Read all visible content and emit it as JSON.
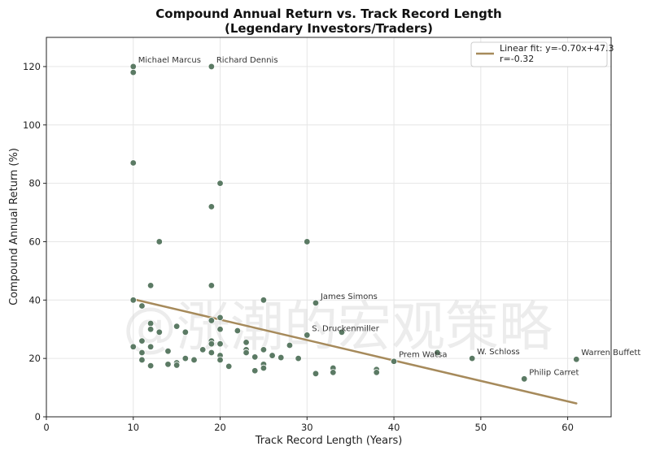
{
  "chart_data": {
    "type": "scatter",
    "title": "Compound Annual Return vs. Track Record Length",
    "subtitle": "(Legendary Investors/Traders)",
    "xlabel": "Track Record Length (Years)",
    "ylabel": "Compound Annual Return (%)",
    "xlim": [
      0,
      65
    ],
    "ylim": [
      0,
      130
    ],
    "xticks": [
      0,
      10,
      20,
      30,
      40,
      50,
      60
    ],
    "yticks": [
      0,
      20,
      40,
      60,
      80,
      100,
      120
    ],
    "grid": true,
    "legend_position": "top-right",
    "point_color": "#5b7a64",
    "fit_color": "#a68a5b",
    "fit": {
      "label": "Linear fit: y=-0.70x+47.3",
      "r_label": "r=-0.32",
      "slope": -0.7,
      "intercept": 47.3,
      "x_range": [
        10,
        61
      ]
    },
    "points": [
      {
        "x": 10,
        "y": 120
      },
      {
        "x": 10,
        "y": 118
      },
      {
        "x": 19,
        "y": 120
      },
      {
        "x": 10,
        "y": 87
      },
      {
        "x": 20,
        "y": 80
      },
      {
        "x": 19,
        "y": 72
      },
      {
        "x": 13,
        "y": 60
      },
      {
        "x": 30,
        "y": 60
      },
      {
        "x": 12,
        "y": 45
      },
      {
        "x": 19,
        "y": 45
      },
      {
        "x": 10,
        "y": 40
      },
      {
        "x": 25,
        "y": 40
      },
      {
        "x": 31,
        "y": 39
      },
      {
        "x": 11,
        "y": 38
      },
      {
        "x": 20,
        "y": 34
      },
      {
        "x": 19,
        "y": 33
      },
      {
        "x": 12,
        "y": 32
      },
      {
        "x": 15,
        "y": 31
      },
      {
        "x": 12,
        "y": 30
      },
      {
        "x": 20,
        "y": 30
      },
      {
        "x": 22,
        "y": 29.5
      },
      {
        "x": 13,
        "y": 29
      },
      {
        "x": 16,
        "y": 29
      },
      {
        "x": 34,
        "y": 29
      },
      {
        "x": 30,
        "y": 28
      },
      {
        "x": 11,
        "y": 26
      },
      {
        "x": 19,
        "y": 26
      },
      {
        "x": 23,
        "y": 25.5
      },
      {
        "x": 19,
        "y": 25
      },
      {
        "x": 20,
        "y": 25
      },
      {
        "x": 28,
        "y": 24.5
      },
      {
        "x": 10,
        "y": 24
      },
      {
        "x": 12,
        "y": 24
      },
      {
        "x": 18,
        "y": 23
      },
      {
        "x": 23,
        "y": 23
      },
      {
        "x": 25,
        "y": 23
      },
      {
        "x": 14,
        "y": 22.5
      },
      {
        "x": 23,
        "y": 22
      },
      {
        "x": 11,
        "y": 22
      },
      {
        "x": 19,
        "y": 22
      },
      {
        "x": 45,
        "y": 22
      },
      {
        "x": 26,
        "y": 21
      },
      {
        "x": 20,
        "y": 21
      },
      {
        "x": 24,
        "y": 20.5
      },
      {
        "x": 27,
        "y": 20.3
      },
      {
        "x": 16,
        "y": 20
      },
      {
        "x": 29,
        "y": 20
      },
      {
        "x": 49,
        "y": 20
      },
      {
        "x": 20,
        "y": 19.5
      },
      {
        "x": 11,
        "y": 19.5
      },
      {
        "x": 17,
        "y": 19.5
      },
      {
        "x": 61,
        "y": 19.7
      },
      {
        "x": 40,
        "y": 19
      },
      {
        "x": 15,
        "y": 18.5
      },
      {
        "x": 14,
        "y": 18
      },
      {
        "x": 15,
        "y": 17.7
      },
      {
        "x": 25,
        "y": 18
      },
      {
        "x": 12,
        "y": 17.5
      },
      {
        "x": 21,
        "y": 17.3
      },
      {
        "x": 25,
        "y": 16.7
      },
      {
        "x": 33,
        "y": 16.7
      },
      {
        "x": 38,
        "y": 16.2
      },
      {
        "x": 24,
        "y": 15.8
      },
      {
        "x": 33,
        "y": 15.2
      },
      {
        "x": 38,
        "y": 15.2
      },
      {
        "x": 31,
        "y": 14.8
      },
      {
        "x": 55,
        "y": 13
      }
    ],
    "annotations": [
      {
        "text": "Michael Marcus",
        "x": 10,
        "y": 120
      },
      {
        "text": "Richard Dennis",
        "x": 19,
        "y": 120
      },
      {
        "text": "James Simons",
        "x": 31,
        "y": 39
      },
      {
        "text": "S. Druckenmiller",
        "x": 30,
        "y": 28
      },
      {
        "text": "Prem Watsa",
        "x": 40,
        "y": 19
      },
      {
        "text": "W. Schloss",
        "x": 49,
        "y": 20
      },
      {
        "text": "Warren Buffett",
        "x": 61,
        "y": 19.7
      },
      {
        "text": "Philip Carret",
        "x": 55,
        "y": 13
      }
    ],
    "watermark": "@涨潮的宏观策略"
  }
}
